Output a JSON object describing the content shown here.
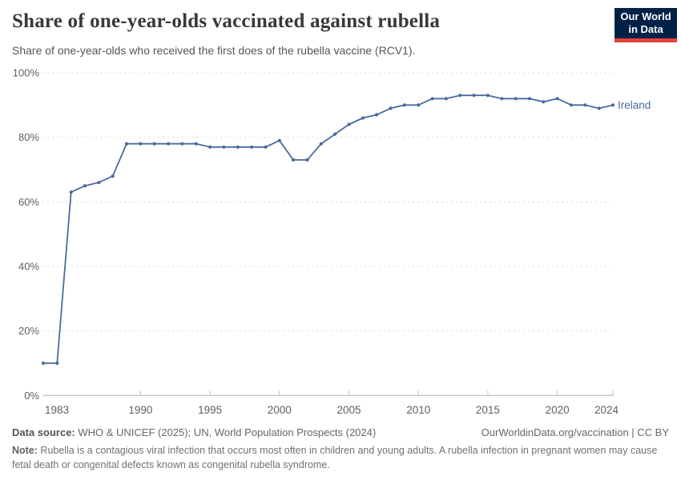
{
  "header": {
    "title": "Share of one-year-olds vaccinated against rubella",
    "subtitle": "Share of one-year-olds who received the first does of the rubella vaccine (RCV1)."
  },
  "logo": {
    "line1": "Our World",
    "line2": "in Data",
    "bg_color": "#002147",
    "accent_color": "#e5433b"
  },
  "chart_data": {
    "type": "line",
    "title": "Share of one-year-olds vaccinated against rubella",
    "xlabel": "",
    "ylabel": "",
    "xlim": [
      1983,
      2024
    ],
    "ylim": [
      0,
      100
    ],
    "grid": "horizontal-dashed",
    "x_ticks": [
      1983,
      1990,
      1995,
      2000,
      2005,
      2010,
      2015,
      2020,
      2024
    ],
    "y_ticks": [
      0,
      20,
      40,
      60,
      80,
      100
    ],
    "y_tick_suffix": "%",
    "legend_position": "end-of-line-label",
    "series": [
      {
        "name": "Ireland",
        "color": "#4c6a9c",
        "x": [
          1983,
          1984,
          1985,
          1986,
          1987,
          1988,
          1989,
          1990,
          1991,
          1992,
          1993,
          1994,
          1995,
          1996,
          1997,
          1998,
          1999,
          2000,
          2001,
          2002,
          2003,
          2004,
          2005,
          2006,
          2007,
          2008,
          2009,
          2010,
          2011,
          2012,
          2013,
          2014,
          2015,
          2016,
          2017,
          2018,
          2019,
          2020,
          2021,
          2022,
          2023,
          2024
        ],
        "values": [
          10,
          10,
          63,
          65,
          66,
          68,
          78,
          78,
          78,
          78,
          78,
          78,
          77,
          77,
          77,
          77,
          77,
          79,
          73,
          73,
          78,
          81,
          84,
          86,
          87,
          89,
          90,
          90,
          92,
          92,
          93,
          93,
          93,
          92,
          92,
          92,
          91,
          92,
          90,
          90,
          89,
          90
        ]
      }
    ]
  },
  "footer": {
    "datasource_label": "Data source:",
    "datasource_text": " WHO & UNICEF (2025); UN, World Population Prospects (2024)",
    "link": "OurWorldinData.org/vaccination | CC BY",
    "note_label": "Note:",
    "note_text": " Rubella is a contagious viral infection that occurs most often in children and young adults. A rubella infection in pregnant women may cause fetal death or congenital defects known as congenital rubella syndrome."
  }
}
